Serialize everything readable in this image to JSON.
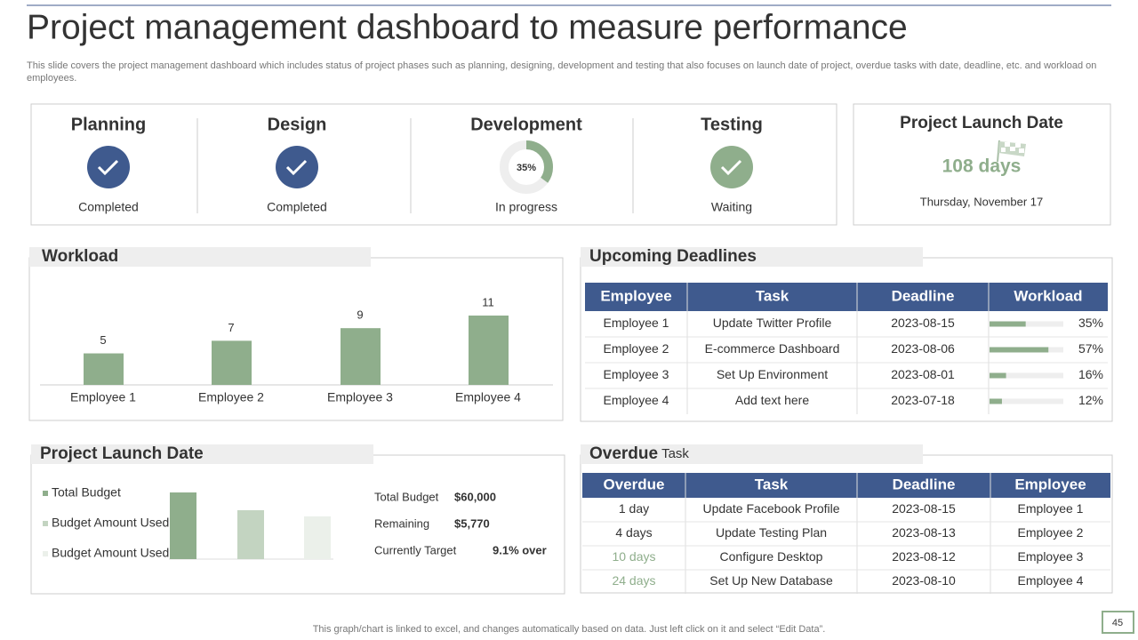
{
  "header": {
    "title": "Project management dashboard to measure performance",
    "subtitle": "This slide covers the project management dashboard which includes status of project phases such as planning, designing, development and testing that also focuses on launch date of project, overdue tasks with date, deadline, etc. and workload on employees."
  },
  "phases": [
    {
      "name": "Planning",
      "status": "Completed",
      "color": "#3f5a8e"
    },
    {
      "name": "Design",
      "status": "Completed",
      "color": "#3f5a8e"
    },
    {
      "name": "Development",
      "status": "In progress",
      "progress": 35,
      "progress_label": "35%",
      "color": "#8fae8c"
    },
    {
      "name": "Testing",
      "status": "Waiting",
      "color": "#8fae8c"
    }
  ],
  "launch": {
    "title": "Project Launch Date",
    "days": "108 days",
    "date": "Thursday,  November  17"
  },
  "chart_data": [
    {
      "type": "bar",
      "title": "Workload",
      "categories": [
        "Employee 1",
        "Employee 2",
        "Employee 3",
        "Employee 4"
      ],
      "values": [
        5,
        7,
        9,
        11
      ],
      "color": "#8fae8c"
    },
    {
      "type": "bar",
      "title": "Project Launch Date",
      "categories": [
        "Total Budget",
        "Budget Amount Used",
        "Budget Amount Used"
      ],
      "values": [
        60000,
        44000,
        38500
      ],
      "colors": [
        "#8fae8c",
        "#c3d4c1",
        "#ebf0ea"
      ]
    }
  ],
  "budget_summary": [
    {
      "label": "Total Budget",
      "value": "$60,000"
    },
    {
      "label": "Remaining",
      "value": "$5,770"
    },
    {
      "label": "Currently Target",
      "value": "9.1% over"
    }
  ],
  "deadlines": {
    "title": "Upcoming Deadlines",
    "columns": [
      "Employee",
      "Task",
      "Deadline",
      "Workload"
    ],
    "rows": [
      {
        "employee": "Employee 1",
        "task": "Update Twitter Profile",
        "deadline": "2023-08-15",
        "workload": 35,
        "workload_label": "35%"
      },
      {
        "employee": "Employee 2",
        "task": "E-commerce Dashboard",
        "deadline": "2023-08-06",
        "workload": 57,
        "workload_label": "57%"
      },
      {
        "employee": "Employee 3",
        "task": "Set Up Environment",
        "deadline": "2023-08-01",
        "workload": 16,
        "workload_label": "16%"
      },
      {
        "employee": "Employee 4",
        "task": "Add text here",
        "deadline": "2023-07-18",
        "workload": 12,
        "workload_label": "12%"
      }
    ]
  },
  "overdue": {
    "title": "Overdue",
    "title_suffix": "Task",
    "columns": [
      "Overdue",
      "Task",
      "Deadline",
      "Employee"
    ],
    "rows": [
      {
        "cells": [
          "1 day",
          "Update Facebook Profile",
          "2023-08-15",
          "Employee 1"
        ],
        "color": "#333333"
      },
      {
        "cells": [
          "4 days",
          "Update Testing Plan",
          "2023-08-13",
          "Employee 2"
        ],
        "color": "#333333"
      },
      {
        "cells": [
          "10 days",
          "Configure Desktop",
          "2023-08-12",
          "Employee 3"
        ],
        "color": "#8fae8c"
      },
      {
        "cells": [
          "24 days",
          "Set Up New Database",
          "2023-08-10",
          "Employee 4"
        ],
        "color": "#8fae8c"
      }
    ]
  },
  "footer": {
    "note": "This graph/chart is linked to excel,  and changes automatically based on data. Just left click on it and select “Edit Data”.",
    "page": "45"
  }
}
